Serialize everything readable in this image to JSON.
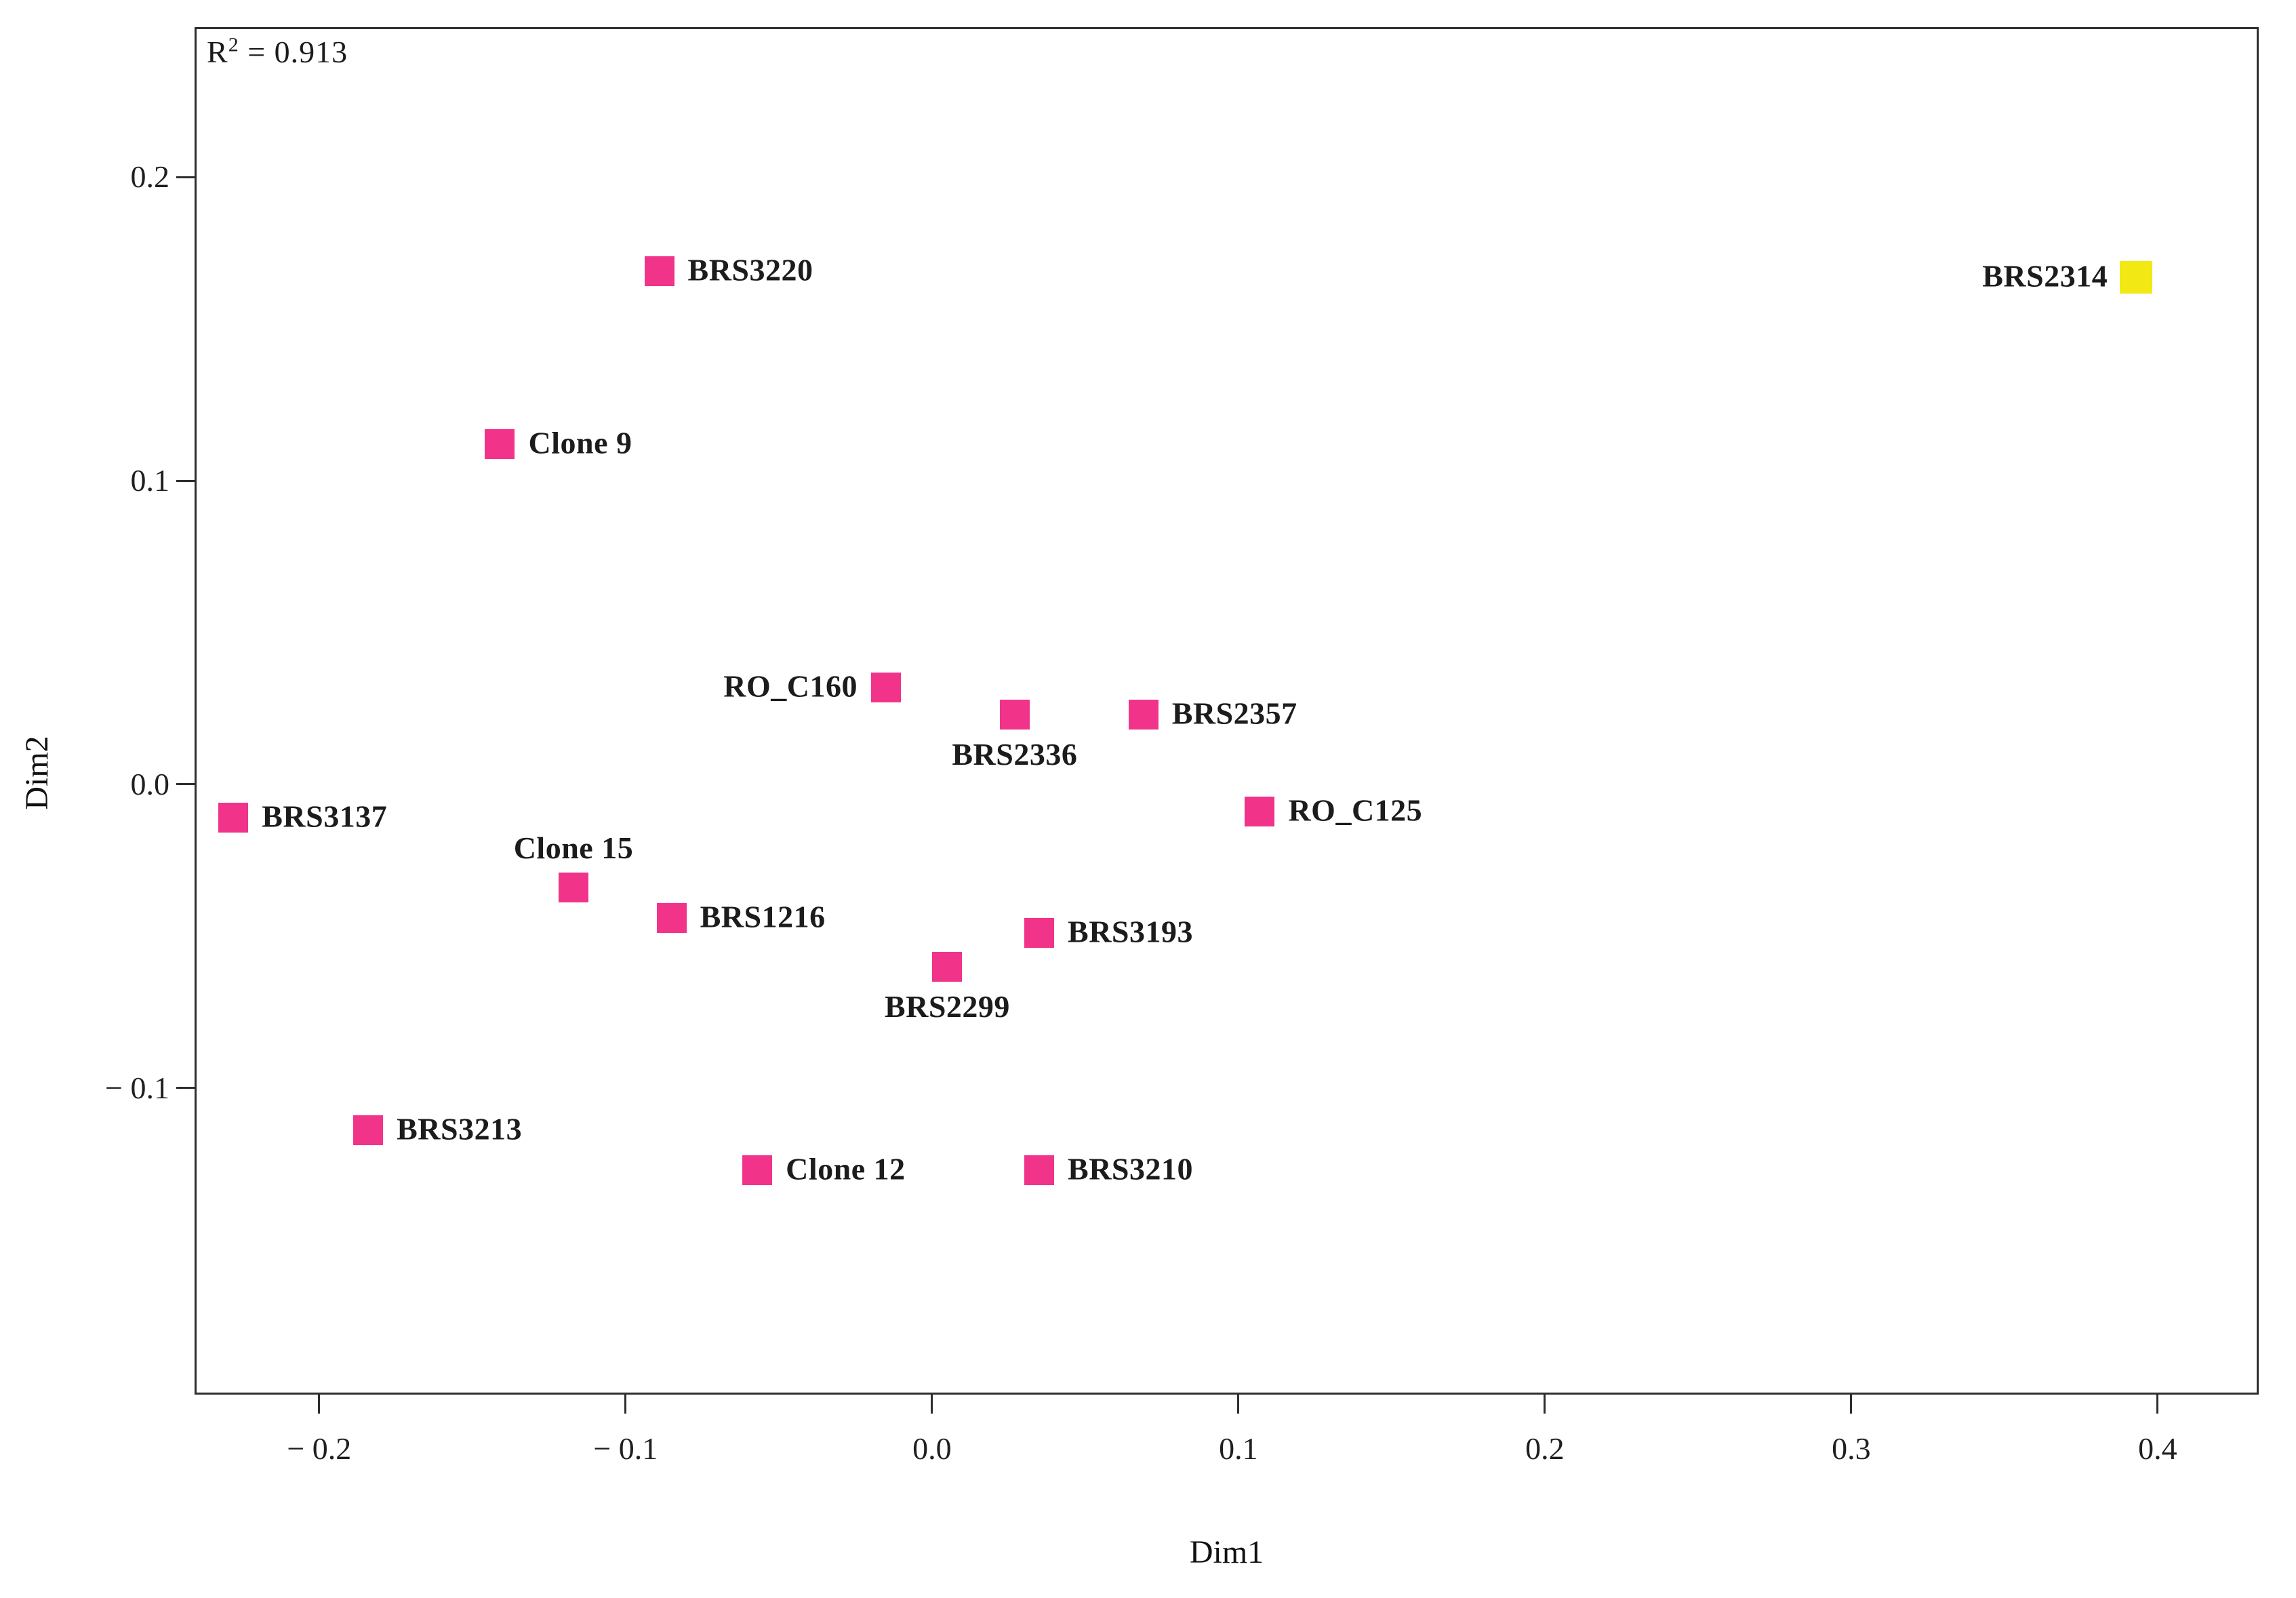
{
  "figure": {
    "annotation": {
      "prefix": "R",
      "sup": "2",
      "rest": " = 0.913"
    }
  },
  "chart_data": {
    "type": "scatter",
    "annotation": "R² = 0.913",
    "r_squared": 0.913,
    "xlabel": "Dim1",
    "ylabel": "Dim2",
    "xlim": [
      -0.24,
      0.433
    ],
    "ylim": [
      -0.201,
      0.249
    ],
    "grid": false,
    "legend_position": "none",
    "marker": "filled-square",
    "x_ticks": [
      -0.2,
      -0.1,
      0.0,
      0.1,
      0.2,
      0.3,
      0.4
    ],
    "x_tick_labels": [
      "− 0.2",
      "− 0.1",
      "0.0",
      "0.1",
      "0.2",
      "0.3",
      "0.4"
    ],
    "y_ticks": [
      0.2,
      0.1,
      0.0,
      -0.1
    ],
    "y_tick_labels": [
      "0.2",
      "0.1",
      "0.0",
      "− 0.1"
    ],
    "colors": {
      "pink": "#F1338A",
      "yellow": "#F2E813"
    },
    "points": [
      {
        "label": "BRS3220",
        "x": -0.089,
        "y": 0.169,
        "color": "pink",
        "label_side": "right"
      },
      {
        "label": "Clone 9",
        "x": -0.141,
        "y": 0.112,
        "color": "pink",
        "label_side": "right"
      },
      {
        "label": "BRS2314",
        "x": 0.393,
        "y": 0.167,
        "color": "yellow",
        "label_side": "left"
      },
      {
        "label": "RO_C160",
        "x": -0.015,
        "y": 0.032,
        "color": "pink",
        "label_side": "left"
      },
      {
        "label": "BRS2336",
        "x": 0.027,
        "y": 0.023,
        "color": "pink",
        "label_side": "below"
      },
      {
        "label": "BRS2357",
        "x": 0.069,
        "y": 0.023,
        "color": "pink",
        "label_side": "right"
      },
      {
        "label": "RO_C125",
        "x": 0.107,
        "y": -0.009,
        "color": "pink",
        "label_side": "right"
      },
      {
        "label": "BRS3137",
        "x": -0.228,
        "y": -0.011,
        "color": "pink",
        "label_side": "right"
      },
      {
        "label": "Clone 15",
        "x": -0.117,
        "y": -0.034,
        "color": "pink",
        "label_side": "above"
      },
      {
        "label": "BRS1216",
        "x": -0.085,
        "y": -0.044,
        "color": "pink",
        "label_side": "right"
      },
      {
        "label": "BRS3193",
        "x": 0.035,
        "y": -0.049,
        "color": "pink",
        "label_side": "right"
      },
      {
        "label": "BRS2299",
        "x": 0.005,
        "y": -0.06,
        "color": "pink",
        "label_side": "below"
      },
      {
        "label": "BRS3213",
        "x": -0.184,
        "y": -0.114,
        "color": "pink",
        "label_side": "right"
      },
      {
        "label": "Clone 12",
        "x": -0.057,
        "y": -0.127,
        "color": "pink",
        "label_side": "right"
      },
      {
        "label": "BRS3210",
        "x": 0.035,
        "y": -0.127,
        "color": "pink",
        "label_side": "right"
      }
    ]
  }
}
